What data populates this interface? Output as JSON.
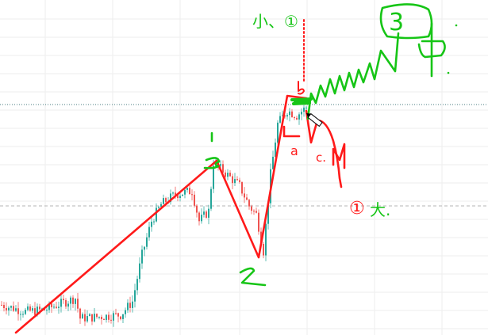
{
  "chart_data": {
    "type": "candlestick",
    "title": "",
    "xlabel": "",
    "ylabel": "",
    "grid": true,
    "colors": {
      "up": "#26a69a",
      "down": "#ef5350",
      "annotation_red": "#ff1a1a",
      "annotation_green": "#16c516",
      "grid": "#eeeeee"
    },
    "price_path": [
      [
        0,
        9
      ],
      [
        10,
        7
      ],
      [
        18,
        7.5
      ],
      [
        31,
        11
      ],
      [
        33,
        5
      ],
      [
        50,
        6
      ],
      [
        55,
        10
      ],
      [
        59,
        24
      ],
      [
        63,
        34
      ],
      [
        67,
        39
      ],
      [
        73,
        42
      ],
      [
        80,
        43
      ],
      [
        83,
        34
      ],
      [
        87,
        37
      ],
      [
        89,
        51.5
      ],
      [
        93,
        49
      ],
      [
        100,
        44.5
      ],
      [
        104,
        38.5
      ],
      [
        107,
        36
      ],
      [
        110,
        25
      ],
      [
        113,
        48
      ],
      [
        116,
        63
      ],
      [
        120,
        67
      ],
      [
        124,
        65.5
      ],
      [
        128,
        68
      ]
    ],
    "annotations": {
      "wave_1_label": "1",
      "wave_2_label": "2",
      "wave_a_label": "a",
      "wave_b_label": "b",
      "wave_c_label": "c.",
      "small_label": "小、①",
      "big_label_num": "①",
      "big_label_char": "大.",
      "wave_3_label": "3",
      "middle_label": "中"
    }
  }
}
